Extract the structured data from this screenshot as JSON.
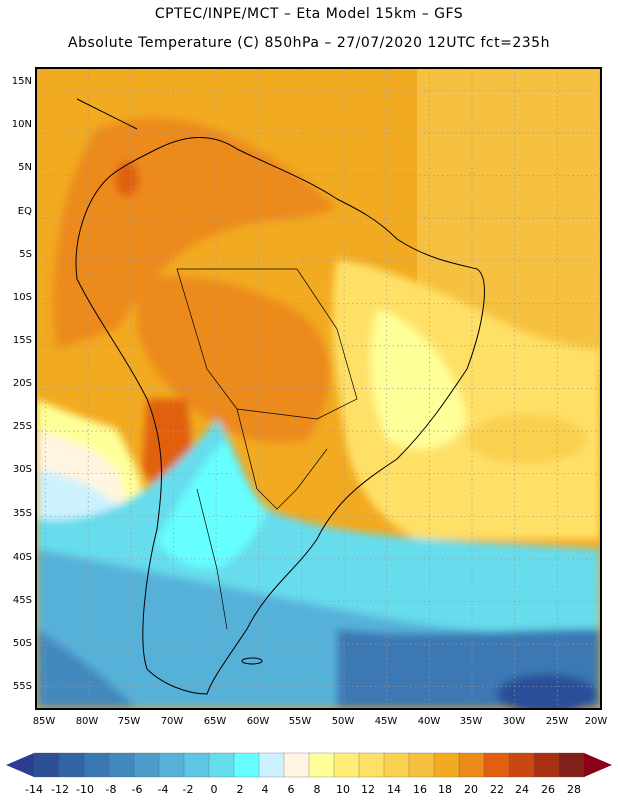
{
  "header": {
    "line1": "CPTEC/INPE/MCT –  Eta Model 15km – GFS",
    "line2": "Absolute Temperature (C) 850hPa – 27/07/2020 12UTC fct=235h"
  },
  "map": {
    "lat_labels": [
      "15N",
      "10N",
      "5N",
      "EQ",
      "5S",
      "10S",
      "15S",
      "20S",
      "25S",
      "30S",
      "35S",
      "40S",
      "45S",
      "50S",
      "55S"
    ],
    "lon_labels": [
      "85W",
      "80W",
      "75W",
      "70W",
      "65W",
      "60W",
      "55W",
      "50W",
      "45W",
      "40W",
      "35W",
      "30W",
      "25W",
      "20W"
    ],
    "lat_range": [
      17.5,
      -57.5
    ],
    "lon_range": [
      -86,
      -20
    ]
  },
  "colorbar": {
    "labels": [
      "-14",
      "-12",
      "-10",
      "-8",
      "-6",
      "-4",
      "-2",
      "0",
      "2",
      "4",
      "6",
      "8",
      "10",
      "12",
      "14",
      "16",
      "18",
      "20",
      "22",
      "24",
      "26",
      "28"
    ],
    "colors": [
      "#2c4f98",
      "#3165a6",
      "#3a78b4",
      "#4289be",
      "#4c9dcb",
      "#57b1d9",
      "#5ec6e4",
      "#66dcec",
      "#66ffff",
      "#ccf2ff",
      "#fff5e0",
      "#ffff99",
      "#ffee77",
      "#ffe066",
      "#fad050",
      "#f6c040",
      "#f2aa20",
      "#ec8a1a",
      "#e06010",
      "#c84810",
      "#a83010",
      "#802018"
    ],
    "under_color": "#2a3d8f",
    "over_color": "#8a0018"
  }
}
